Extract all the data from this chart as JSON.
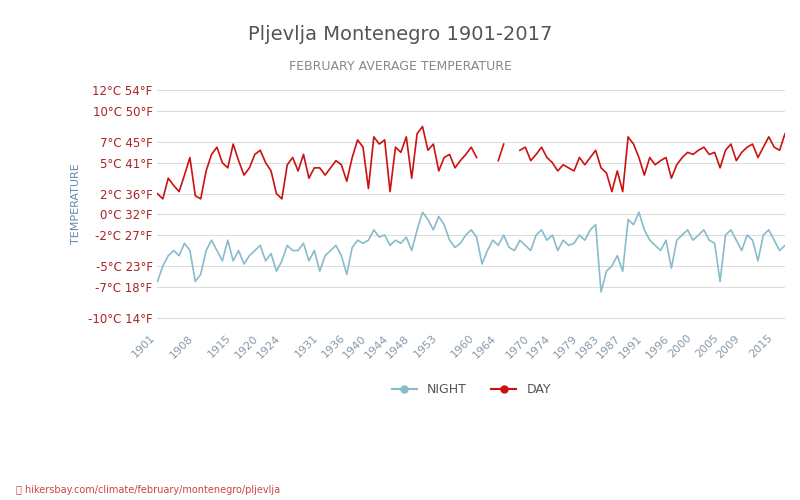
{
  "title": "Pljevlja Montenegro 1901-2017",
  "subtitle": "FEBRUARY AVERAGE TEMPERATURE",
  "ylabel": "TEMPERATURE",
  "xlabel_url": "hikersbay.com/climate/february/montenegro/pljevlja",
  "yticks_c": [
    -10,
    -7,
    -5,
    -2,
    0,
    2,
    5,
    7,
    10,
    12
  ],
  "yticks_f": [
    14,
    18,
    23,
    27,
    32,
    36,
    41,
    45,
    50,
    54
  ],
  "ylim": [
    -11,
    13
  ],
  "x_years": [
    1901,
    1908,
    1915,
    1920,
    1924,
    1931,
    1936,
    1940,
    1944,
    1948,
    1953,
    1960,
    1964,
    1970,
    1974,
    1979,
    1983,
    1987,
    1991,
    1996,
    2000,
    2005,
    2009,
    2015
  ],
  "background_color": "#ffffff",
  "grid_color": "#dddddd",
  "day_color": "#cc1111",
  "night_color": "#88bbcc",
  "title_color": "#555555",
  "subtitle_color": "#888888",
  "ylabel_color": "#6688aa",
  "yticklabel_color": "#aa2222",
  "xticklabel_color": "#8899aa",
  "legend_night_color": "#88bbcc",
  "legend_day_color": "#cc1111",
  "day_data": {
    "1901": 2.0,
    "1902": 1.5,
    "1903": 3.5,
    "1904": 2.8,
    "1905": 2.2,
    "1906": 3.8,
    "1907": 5.5,
    "1908": 1.8,
    "1909": 1.5,
    "1910": 4.2,
    "1911": 5.8,
    "1912": 6.5,
    "1913": 5.0,
    "1914": 4.5,
    "1915": 6.8,
    "1916": 5.2,
    "1917": 3.8,
    "1918": 4.5,
    "1919": 5.8,
    "1920": 6.2,
    "1921": 5.0,
    "1922": 4.2,
    "1923": 2.0,
    "1924": 1.5,
    "1925": 4.8,
    "1926": 5.5,
    "1927": 4.2,
    "1928": 5.8,
    "1929": 3.5,
    "1930": 4.5,
    "1931": 4.5,
    "1932": 3.8,
    "1933": 4.5,
    "1934": 5.2,
    "1935": 4.8,
    "1936": 3.2,
    "1937": 5.5,
    "1938": 7.2,
    "1939": 6.5,
    "1940": 2.5,
    "1941": 7.5,
    "1942": 6.8,
    "1943": 7.2,
    "1944": 2.2,
    "1945": 6.5,
    "1946": 6.0,
    "1947": 7.5,
    "1948": 3.5,
    "1949": 7.8,
    "1950": 8.5,
    "1951": 6.2,
    "1952": 6.8,
    "1953": 4.2,
    "1954": 5.5,
    "1955": 5.8,
    "1956": 4.5,
    "1957": 5.2,
    "1958": 5.8,
    "1959": 6.5,
    "1960": 5.5,
    "1961": null,
    "1962": null,
    "1963": null,
    "1964": 5.2,
    "1965": 6.8,
    "1966": null,
    "1967": null,
    "1968": 6.2,
    "1969": 6.5,
    "1970": 5.2,
    "1971": 5.8,
    "1972": 6.5,
    "1973": 5.5,
    "1974": 5.0,
    "1975": 4.2,
    "1976": 4.8,
    "1977": 4.5,
    "1978": 4.2,
    "1979": 5.5,
    "1980": 4.8,
    "1981": 5.5,
    "1982": 6.2,
    "1983": 4.5,
    "1984": 4.0,
    "1985": 2.2,
    "1986": 4.2,
    "1987": 2.2,
    "1988": 7.5,
    "1989": 6.8,
    "1990": 5.5,
    "1991": 3.8,
    "1992": 5.5,
    "1993": 4.8,
    "1994": 5.2,
    "1995": 5.5,
    "1996": 3.5,
    "1997": 4.8,
    "1998": 5.5,
    "1999": 6.0,
    "2000": 5.8,
    "2001": 6.2,
    "2002": 6.5,
    "2003": 5.8,
    "2004": 6.0,
    "2005": 4.5,
    "2006": 6.2,
    "2007": 6.8,
    "2008": 5.2,
    "2009": 6.0,
    "2010": 6.5,
    "2011": 6.8,
    "2012": 5.5,
    "2013": 6.5,
    "2014": 7.5,
    "2015": 6.5,
    "2016": 6.2,
    "2017": 7.8
  },
  "night_data": {
    "1901": -6.5,
    "1902": -5.0,
    "1903": -4.0,
    "1904": -3.5,
    "1905": -4.0,
    "1906": -2.8,
    "1907": -3.5,
    "1908": -6.5,
    "1909": -5.8,
    "1910": -3.5,
    "1911": -2.5,
    "1912": -3.5,
    "1913": -4.5,
    "1914": -2.5,
    "1915": -4.5,
    "1916": -3.5,
    "1917": -4.8,
    "1918": -4.0,
    "1919": -3.5,
    "1920": -3.0,
    "1921": -4.5,
    "1922": -3.8,
    "1923": -5.5,
    "1924": -4.5,
    "1925": -3.0,
    "1926": -3.5,
    "1927": -3.5,
    "1928": -2.8,
    "1929": -4.5,
    "1930": -3.5,
    "1931": -5.5,
    "1932": -4.0,
    "1933": -3.5,
    "1934": -3.0,
    "1935": -4.0,
    "1936": -5.8,
    "1937": -3.2,
    "1938": -2.5,
    "1939": -2.8,
    "1940": -2.5,
    "1941": -1.5,
    "1942": -2.2,
    "1943": -2.0,
    "1944": -3.0,
    "1945": -2.5,
    "1946": -2.8,
    "1947": -2.2,
    "1948": -3.5,
    "1949": -1.5,
    "1950": 0.2,
    "1951": -0.5,
    "1952": -1.5,
    "1953": -0.2,
    "1954": -1.0,
    "1955": -2.5,
    "1956": -3.2,
    "1957": -2.8,
    "1958": -2.0,
    "1959": -1.5,
    "1960": -2.2,
    "1961": -4.8,
    "1962": -3.5,
    "1963": -2.5,
    "1964": -3.0,
    "1965": -2.0,
    "1966": -3.2,
    "1967": -3.5,
    "1968": -2.5,
    "1969": -3.0,
    "1970": -3.5,
    "1971": -2.0,
    "1972": -1.5,
    "1973": -2.5,
    "1974": -2.0,
    "1975": -3.5,
    "1976": -2.5,
    "1977": -3.0,
    "1978": -2.8,
    "1979": -2.0,
    "1980": -2.5,
    "1981": -1.5,
    "1982": -1.0,
    "1983": -7.5,
    "1984": -5.5,
    "1985": -5.0,
    "1986": -4.0,
    "1987": -5.5,
    "1988": -0.5,
    "1989": -1.0,
    "1990": 0.2,
    "1991": -1.5,
    "1992": -2.5,
    "1993": -3.0,
    "1994": -3.5,
    "1995": -2.5,
    "1996": -5.2,
    "1997": -2.5,
    "1998": -2.0,
    "1999": -1.5,
    "2000": -2.5,
    "2001": -2.0,
    "2002": -1.5,
    "2003": -2.5,
    "2004": -2.8,
    "2005": -6.5,
    "2006": -2.0,
    "2007": -1.5,
    "2008": -2.5,
    "2009": -3.5,
    "2010": -2.0,
    "2011": -2.5,
    "2012": -4.5,
    "2013": -2.0,
    "2014": -1.5,
    "2015": -2.5,
    "2016": -3.5,
    "2017": -3.0
  }
}
